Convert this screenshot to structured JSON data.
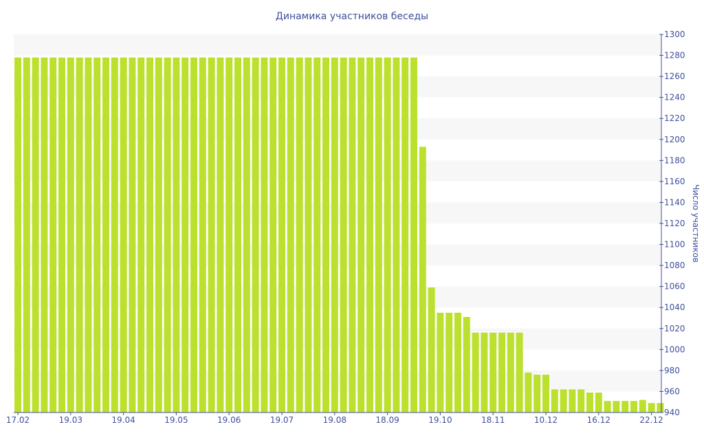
{
  "chart_data": {
    "type": "bar",
    "title": "Динамика участников беседы",
    "ylabel": "Число участников",
    "xlabel": "",
    "ylim": [
      940,
      1300
    ],
    "ytick_step": 20,
    "yaxis_position": "right",
    "grid": "alternating horizontal bands",
    "color": "#bce02e",
    "x_tick_labels": [
      {
        "index": 0,
        "label": "17.02"
      },
      {
        "index": 6,
        "label": "19.03"
      },
      {
        "index": 12,
        "label": "19.04"
      },
      {
        "index": 18,
        "label": "19.05"
      },
      {
        "index": 24,
        "label": "19.06"
      },
      {
        "index": 30,
        "label": "19.07"
      },
      {
        "index": 36,
        "label": "19.08"
      },
      {
        "index": 42,
        "label": "18.09"
      },
      {
        "index": 48,
        "label": "19.10"
      },
      {
        "index": 54,
        "label": "18.11"
      },
      {
        "index": 60,
        "label": "10.12"
      },
      {
        "index": 66,
        "label": "16.12"
      },
      {
        "index": 72,
        "label": "22.12"
      }
    ],
    "values": [
      1278,
      1278,
      1278,
      1278,
      1278,
      1278,
      1278,
      1278,
      1278,
      1278,
      1278,
      1278,
      1278,
      1278,
      1278,
      1278,
      1278,
      1278,
      1278,
      1278,
      1278,
      1278,
      1278,
      1278,
      1278,
      1278,
      1278,
      1278,
      1278,
      1278,
      1278,
      1278,
      1278,
      1278,
      1278,
      1278,
      1278,
      1278,
      1278,
      1278,
      1278,
      1278,
      1278,
      1278,
      1278,
      1278,
      1193,
      1059,
      1035,
      1035,
      1035,
      1031,
      1016,
      1016,
      1016,
      1016,
      1016,
      1016,
      978,
      976,
      976,
      962,
      962,
      962,
      962,
      959,
      959,
      951,
      951,
      951,
      951,
      952,
      949,
      949
    ]
  }
}
